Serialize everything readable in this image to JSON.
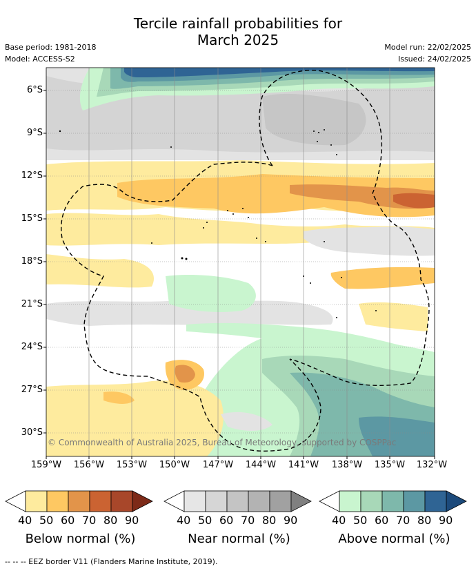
{
  "title_line1": "Tercile rainfall probabilities for",
  "title_line2": "March 2025",
  "base_period": "Base period: 1981-2018",
  "model": "Model: ACCESS-S2",
  "model_run": "Model run: 22/02/2025",
  "issued": "Issued: 24/02/2025",
  "lat_labels": [
    "6°S",
    "9°S",
    "12°S",
    "15°S",
    "18°S",
    "21°S",
    "24°S",
    "27°S",
    "30°S"
  ],
  "lon_labels": [
    "159°W",
    "156°W",
    "153°W",
    "150°W",
    "147°W",
    "144°W",
    "141°W",
    "138°W",
    "135°W",
    "132°W"
  ],
  "copyright": "© Commonwealth of Australia 2025, Bureau of Meteorology, supported by COSPPac",
  "colorbars": [
    {
      "name": "Below normal (%)",
      "ticks": [
        "40",
        "50",
        "60",
        "70",
        "80",
        "90"
      ],
      "colors": [
        "#ffffff",
        "#feeb9e",
        "#fec862",
        "#e2944a",
        "#cb6332",
        "#a8472a",
        "#7d2a18"
      ]
    },
    {
      "name": "Near normal (%)",
      "ticks": [
        "40",
        "50",
        "60",
        "70",
        "80",
        "90"
      ],
      "colors": [
        "#ffffff",
        "#e6e6e6",
        "#d6d6d6",
        "#c4c4c4",
        "#b3b3b3",
        "#a1a1a1",
        "#808080"
      ]
    },
    {
      "name": "Above normal (%)",
      "ticks": [
        "40",
        "50",
        "60",
        "70",
        "80",
        "90"
      ],
      "colors": [
        "#ffffff",
        "#c9f5cf",
        "#a8d8b8",
        "#7eb8ab",
        "#5c98a3",
        "#2f6494",
        "#1c4a7b"
      ]
    }
  ],
  "footnote": "-- -- -- EEZ border V11 (Flanders Marine Institute, 2019)."
}
